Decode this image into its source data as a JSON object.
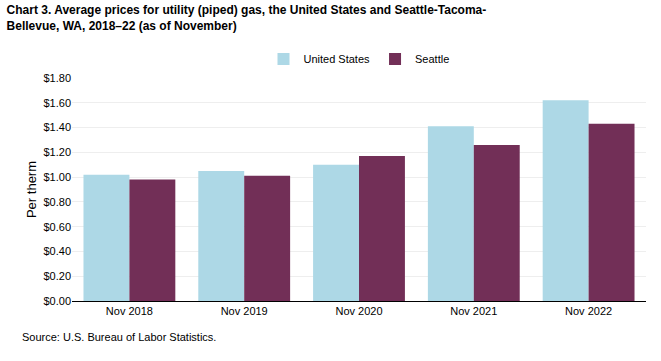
{
  "chart_data": {
    "type": "bar",
    "title": "Chart 3. Average prices for utility (piped) gas, the United States and Seattle-Tacoma-\nBellevue, WA, 2018–22 (as of November)",
    "ylabel": "Per therm",
    "annotations": [
      "Source: U.S. Bureau of Labor Statistics."
    ],
    "categories": [
      "Nov 2018",
      "Nov 2019",
      "Nov 2020",
      "Nov 2021",
      "Nov 2022"
    ],
    "series": [
      {
        "name": "United States",
        "color": "#add8e6",
        "values": [
          1.02,
          1.05,
          1.1,
          1.41,
          1.62
        ]
      },
      {
        "name": "Seattle",
        "color": "#722f57",
        "values": [
          0.98,
          1.01,
          1.17,
          1.26,
          1.43
        ]
      }
    ],
    "ylim": [
      0.0,
      1.8
    ],
    "yticks": [
      {
        "value": 0.0,
        "label": "$0.00"
      },
      {
        "value": 0.2,
        "label": "$0.20"
      },
      {
        "value": 0.4,
        "label": "$0.40"
      },
      {
        "value": 0.6,
        "label": "$0.60"
      },
      {
        "value": 0.8,
        "label": "$0.80"
      },
      {
        "value": 1.0,
        "label": "$1.00"
      },
      {
        "value": 1.2,
        "label": "$1.20"
      },
      {
        "value": 1.4,
        "label": "$1.40"
      },
      {
        "value": 1.6,
        "label": "$1.60"
      },
      {
        "value": 1.8,
        "label": "$1.80"
      }
    ],
    "grid": true,
    "legend": "top"
  }
}
